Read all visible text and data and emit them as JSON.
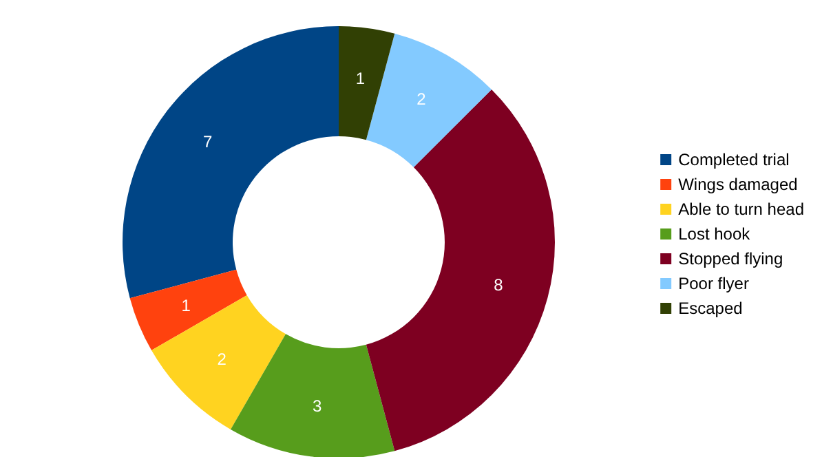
{
  "chart_data": {
    "type": "donut",
    "categories": [
      "Completed trial",
      "Wings damaged",
      "Able to turn head",
      "Lost hook",
      "Stopped flying",
      "Poor flyer",
      "Escaped"
    ],
    "values": [
      7,
      1,
      2,
      3,
      8,
      2,
      1
    ],
    "colors": [
      "#004586",
      "#ff420e",
      "#ffd320",
      "#579d1c",
      "#7e0021",
      "#83caff",
      "#314004"
    ],
    "data_labels": true,
    "legend": "right"
  }
}
